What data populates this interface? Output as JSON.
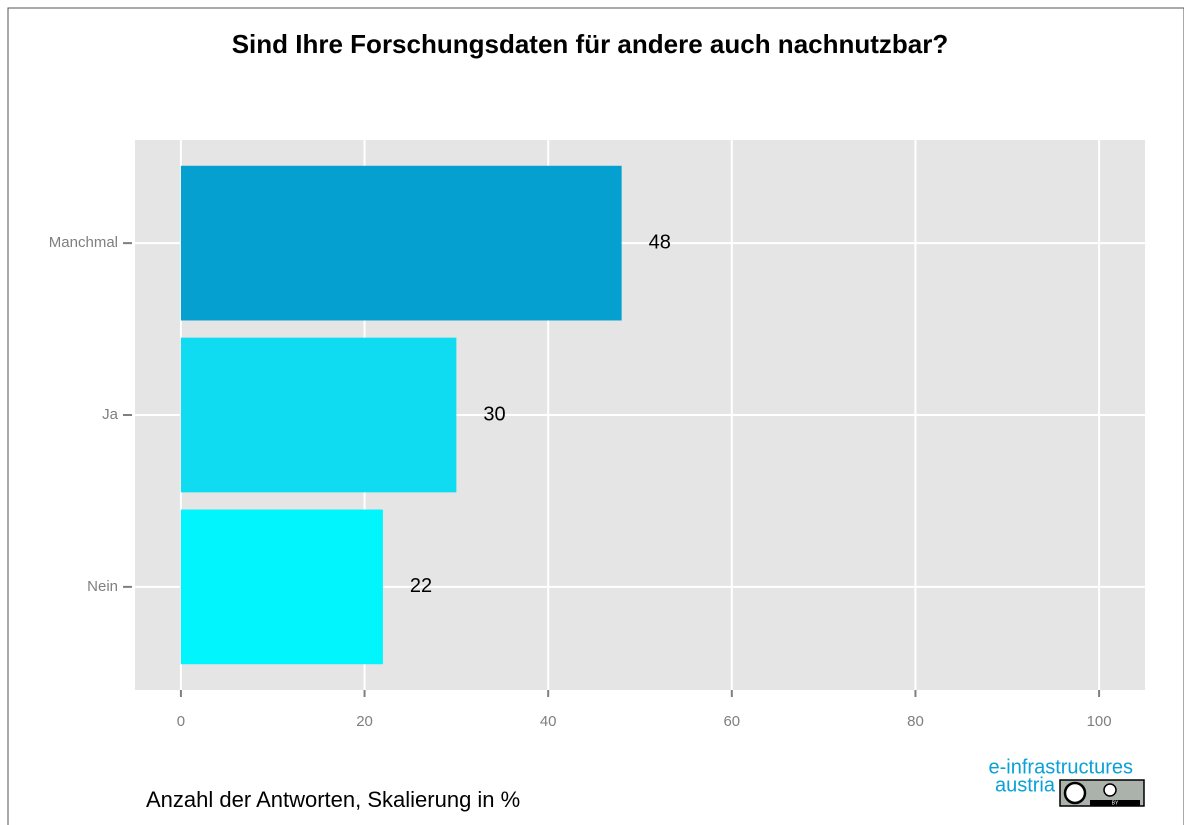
{
  "chart_data": {
    "type": "barh",
    "title": "Sind Ihre Forschungsdaten für andere auch nachnutzbar?",
    "caption": "Anzahl der Antworten, Skalierung in %",
    "categories": [
      "Manchmal",
      "Ja",
      "Nein"
    ],
    "values": [
      48,
      30,
      22
    ],
    "colors": [
      "#05a0d0",
      "#0fdcf0",
      "#00f5fc"
    ],
    "xlim": [
      -5,
      105
    ],
    "xticks": [
      0,
      20,
      40,
      60,
      80,
      100
    ],
    "grid": true,
    "logo": [
      "e-infrastructures",
      "austria"
    ],
    "license": "BY"
  }
}
